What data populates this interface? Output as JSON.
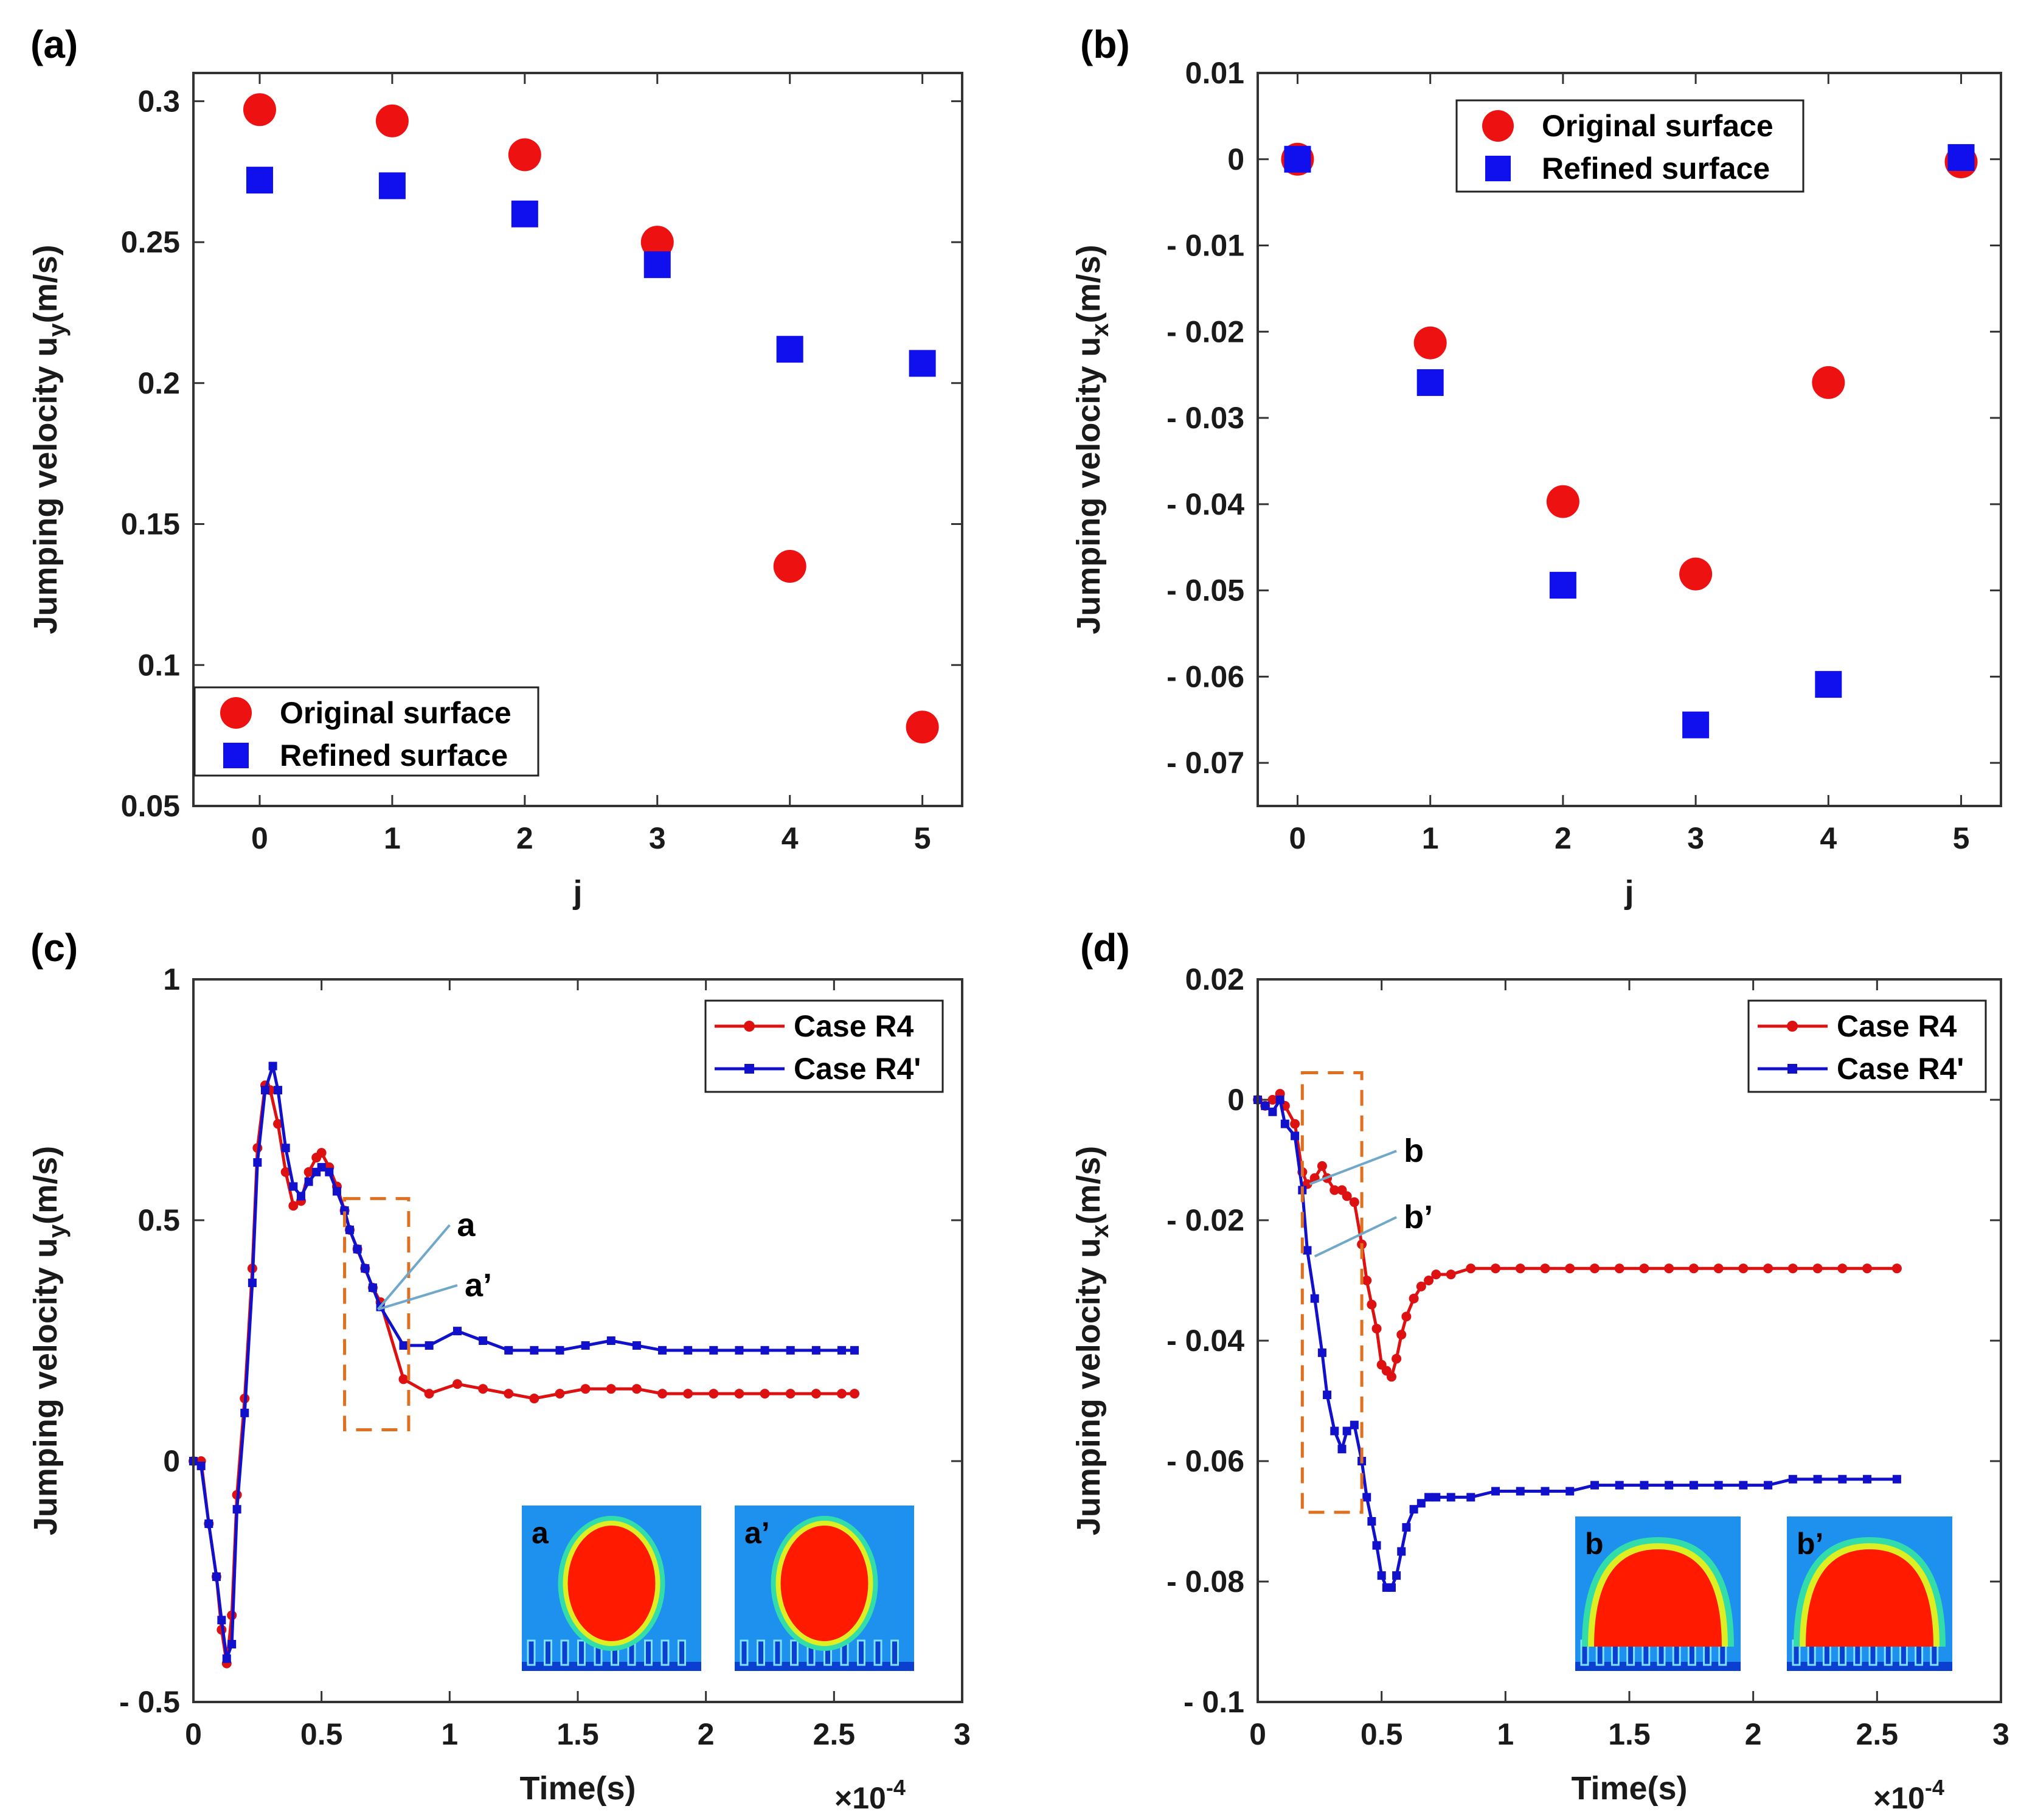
{
  "chart_data": [
    {
      "panel": "(a)",
      "type": "scatter",
      "xlabel": "j",
      "ylabel_main": "Jumping velocity u",
      "ylabel_sub": "y",
      "ylabel_unit": "(m/s)",
      "xlim": [
        -0.5,
        5.3
      ],
      "ylim": [
        0.05,
        0.31
      ],
      "xticks": [
        0,
        1,
        2,
        3,
        4,
        5
      ],
      "xtick_labels": [
        "0",
        "1",
        "2",
        "3",
        "4",
        "5"
      ],
      "yticks": [
        0.05,
        0.1,
        0.15,
        0.2,
        0.25,
        0.3
      ],
      "ytick_labels": [
        "0.05",
        "0.1",
        "0.15",
        "0.2",
        "0.25",
        "0.3"
      ],
      "legend_position": "bottom-left",
      "series": [
        {
          "name": "Original surface",
          "marker": "circle",
          "color": "#ee1111",
          "x": [
            0,
            1,
            2,
            3,
            4,
            5
          ],
          "y": [
            0.297,
            0.293,
            0.281,
            0.25,
            0.135,
            0.078
          ]
        },
        {
          "name": "Refined surface",
          "marker": "square",
          "color": "#1010ee",
          "x": [
            0,
            1,
            2,
            3,
            4,
            5
          ],
          "y": [
            0.272,
            0.27,
            0.26,
            0.242,
            0.212,
            0.207
          ]
        }
      ]
    },
    {
      "panel": "(b)",
      "type": "scatter",
      "xlabel": "j",
      "ylabel_main": "Jumping velocity u",
      "ylabel_sub": "x",
      "ylabel_unit": "(m/s)",
      "xlim": [
        -0.3,
        5.3
      ],
      "ylim": [
        -0.075,
        0.01
      ],
      "xticks": [
        0,
        1,
        2,
        3,
        4,
        5
      ],
      "xtick_labels": [
        "0",
        "1",
        "2",
        "3",
        "4",
        "5"
      ],
      "yticks": [
        0.01,
        0,
        -0.01,
        -0.02,
        -0.03,
        -0.04,
        -0.05,
        -0.06,
        -0.07
      ],
      "ytick_labels": [
        "0.01",
        "0",
        "- 0.01",
        "- 0.02",
        "- 0.03",
        "- 0.04",
        "- 0.05",
        "- 0.06",
        "- 0.07"
      ],
      "legend_position": "top-right",
      "series": [
        {
          "name": "Original surface",
          "marker": "circle",
          "color": "#ee1111",
          "x": [
            0,
            1,
            2,
            3,
            4,
            5
          ],
          "y": [
            0.0,
            -0.0213,
            -0.0397,
            -0.0481,
            -0.0259,
            -0.0003
          ]
        },
        {
          "name": "Refined surface",
          "marker": "square",
          "color": "#1010ee",
          "x": [
            0,
            1,
            2,
            3,
            4,
            5
          ],
          "y": [
            0.0,
            -0.0259,
            -0.0494,
            -0.0656,
            -0.0609,
            0.0002
          ]
        }
      ]
    },
    {
      "panel": "(c)",
      "type": "line",
      "xlabel": "Time(s)",
      "ylabel_main": "Jumping velocity u",
      "ylabel_sub": "y",
      "ylabel_unit": "(m/s)",
      "xlim": [
        0,
        3
      ],
      "ylim": [
        -0.5,
        1
      ],
      "xticks": [
        0,
        0.5,
        1,
        1.5,
        2,
        2.5,
        3
      ],
      "xtick_labels": [
        "0",
        "0.5",
        "1",
        "1.5",
        "2",
        "2.5",
        "3"
      ],
      "yticks": [
        1,
        0.5,
        0,
        -0.5
      ],
      "ytick_labels": [
        "1",
        "0.5",
        "0",
        "- 0.5"
      ],
      "x_multiplier_base": "×10",
      "x_multiplier_exp": "-4",
      "legend_position": "top-right",
      "series": [
        {
          "name": "Case R4",
          "marker": "circle",
          "color": "#dd1111",
          "x": [
            0,
            0.03,
            0.06,
            0.09,
            0.11,
            0.13,
            0.15,
            0.17,
            0.2,
            0.23,
            0.25,
            0.28,
            0.3,
            0.33,
            0.36,
            0.39,
            0.42,
            0.45,
            0.48,
            0.5,
            0.53,
            0.56,
            0.59,
            0.61,
            0.64,
            0.67,
            0.7,
            0.73,
            0.82,
            0.92,
            1.03,
            1.13,
            1.23,
            1.33,
            1.43,
            1.53,
            1.63,
            1.73,
            1.83,
            1.93,
            2.03,
            2.13,
            2.23,
            2.33,
            2.43,
            2.53,
            2.58
          ],
          "y": [
            0,
            0,
            -0.13,
            -0.24,
            -0.35,
            -0.42,
            -0.32,
            -0.07,
            0.13,
            0.4,
            0.65,
            0.78,
            0.77,
            0.7,
            0.6,
            0.53,
            0.54,
            0.6,
            0.63,
            0.64,
            0.61,
            0.57,
            0.52,
            0.48,
            0.44,
            0.4,
            0.36,
            0.33,
            0.17,
            0.14,
            0.16,
            0.15,
            0.14,
            0.13,
            0.14,
            0.15,
            0.15,
            0.15,
            0.14,
            0.14,
            0.14,
            0.14,
            0.14,
            0.14,
            0.14,
            0.14,
            0.14
          ]
        },
        {
          "name": "Case R4'",
          "marker": "square",
          "color": "#1111cc",
          "x": [
            0,
            0.03,
            0.06,
            0.09,
            0.11,
            0.13,
            0.15,
            0.17,
            0.2,
            0.23,
            0.25,
            0.28,
            0.31,
            0.33,
            0.36,
            0.39,
            0.42,
            0.45,
            0.48,
            0.5,
            0.53,
            0.56,
            0.59,
            0.61,
            0.64,
            0.67,
            0.7,
            0.73,
            0.82,
            0.92,
            1.03,
            1.13,
            1.23,
            1.33,
            1.43,
            1.53,
            1.63,
            1.73,
            1.83,
            1.93,
            2.03,
            2.13,
            2.23,
            2.33,
            2.43,
            2.53,
            2.58
          ],
          "y": [
            0,
            -0.01,
            -0.13,
            -0.24,
            -0.33,
            -0.41,
            -0.38,
            -0.1,
            0.1,
            0.37,
            0.62,
            0.77,
            0.82,
            0.77,
            0.65,
            0.57,
            0.55,
            0.58,
            0.6,
            0.61,
            0.6,
            0.56,
            0.52,
            0.48,
            0.44,
            0.4,
            0.36,
            0.32,
            0.24,
            0.24,
            0.27,
            0.25,
            0.23,
            0.23,
            0.23,
            0.24,
            0.25,
            0.24,
            0.23,
            0.23,
            0.23,
            0.23,
            0.23,
            0.23,
            0.23,
            0.23,
            0.23
          ]
        }
      ],
      "annotations": [
        "a",
        "a’"
      ],
      "insets": [
        "a",
        "a’"
      ]
    },
    {
      "panel": "(d)",
      "type": "line",
      "xlabel": "Time(s)",
      "ylabel_main": "Jumping velocity u",
      "ylabel_sub": "x",
      "ylabel_unit": "(m/s)",
      "xlim": [
        0,
        3
      ],
      "ylim": [
        -0.1,
        0.02
      ],
      "xticks": [
        0,
        0.5,
        1,
        1.5,
        2,
        2.5,
        3
      ],
      "xtick_labels": [
        "0",
        "0.5",
        "1",
        "1.5",
        "2",
        "2.5",
        "3"
      ],
      "yticks": [
        0.02,
        0,
        -0.02,
        -0.04,
        -0.06,
        -0.08,
        -0.1
      ],
      "ytick_labels": [
        "0.02",
        "0",
        "- 0.02",
        "- 0.04",
        "- 0.06",
        "- 0.08",
        "- 0.1"
      ],
      "x_multiplier_base": "×10",
      "x_multiplier_exp": "-4",
      "legend_position": "top-right",
      "series": [
        {
          "name": "Case R4",
          "marker": "circle",
          "color": "#dd1111",
          "x": [
            0,
            0.03,
            0.06,
            0.09,
            0.11,
            0.15,
            0.18,
            0.2,
            0.23,
            0.26,
            0.28,
            0.31,
            0.34,
            0.36,
            0.39,
            0.42,
            0.44,
            0.46,
            0.48,
            0.5,
            0.52,
            0.54,
            0.56,
            0.58,
            0.6,
            0.63,
            0.66,
            0.69,
            0.72,
            0.78,
            0.86,
            0.96,
            1.06,
            1.16,
            1.26,
            1.36,
            1.46,
            1.56,
            1.66,
            1.76,
            1.86,
            1.96,
            2.06,
            2.16,
            2.26,
            2.36,
            2.46,
            2.58
          ],
          "y": [
            0,
            -0.001,
            0,
            0.001,
            -0.001,
            -0.004,
            -0.012,
            -0.014,
            -0.013,
            -0.011,
            -0.013,
            -0.015,
            -0.015,
            -0.016,
            -0.017,
            -0.024,
            -0.03,
            -0.034,
            -0.038,
            -0.044,
            -0.045,
            -0.046,
            -0.043,
            -0.039,
            -0.036,
            -0.033,
            -0.031,
            -0.03,
            -0.029,
            -0.029,
            -0.028,
            -0.028,
            -0.028,
            -0.028,
            -0.028,
            -0.028,
            -0.028,
            -0.028,
            -0.028,
            -0.028,
            -0.028,
            -0.028,
            -0.028,
            -0.028,
            -0.028,
            -0.028,
            -0.028,
            -0.028
          ]
        },
        {
          "name": "Case R4'",
          "marker": "square",
          "color": "#1111cc",
          "x": [
            0,
            0.03,
            0.06,
            0.09,
            0.11,
            0.15,
            0.18,
            0.2,
            0.23,
            0.26,
            0.28,
            0.31,
            0.34,
            0.36,
            0.39,
            0.42,
            0.44,
            0.46,
            0.48,
            0.5,
            0.52,
            0.54,
            0.56,
            0.58,
            0.6,
            0.63,
            0.66,
            0.69,
            0.72,
            0.78,
            0.86,
            0.96,
            1.06,
            1.16,
            1.26,
            1.36,
            1.46,
            1.56,
            1.66,
            1.76,
            1.86,
            1.96,
            2.06,
            2.16,
            2.26,
            2.36,
            2.46,
            2.58
          ],
          "y": [
            0,
            -0.001,
            -0.002,
            0,
            -0.004,
            -0.006,
            -0.015,
            -0.025,
            -0.033,
            -0.042,
            -0.049,
            -0.055,
            -0.058,
            -0.055,
            -0.054,
            -0.06,
            -0.066,
            -0.07,
            -0.074,
            -0.079,
            -0.081,
            -0.081,
            -0.079,
            -0.075,
            -0.071,
            -0.068,
            -0.067,
            -0.066,
            -0.066,
            -0.066,
            -0.066,
            -0.065,
            -0.065,
            -0.065,
            -0.065,
            -0.064,
            -0.064,
            -0.064,
            -0.064,
            -0.064,
            -0.064,
            -0.064,
            -0.064,
            -0.063,
            -0.063,
            -0.063,
            -0.063,
            -0.063
          ]
        }
      ],
      "annotations": [
        "b",
        "b’"
      ],
      "insets": [
        "b",
        "b’"
      ]
    }
  ],
  "colors": {
    "original": "#ee1111",
    "refined": "#1010ee",
    "case_r4": "#dd1111",
    "case_r4p": "#1111cc",
    "dashed_box": "#e07020",
    "pointer": "#6fa8c8",
    "inset_bg": "#1e90ee",
    "inset_drop": "#ff1a00"
  }
}
